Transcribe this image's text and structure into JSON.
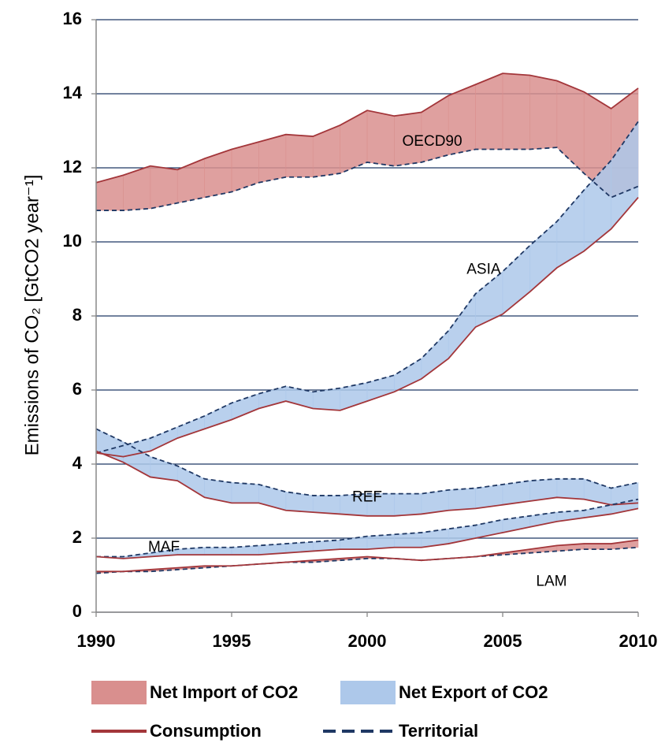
{
  "chart_data": {
    "type": "band",
    "y_label": "Emissions of CO₂ [GtCO2 year⁻¹]",
    "x": [
      1990,
      1991,
      1992,
      1993,
      1994,
      1995,
      1996,
      1997,
      1998,
      1999,
      2000,
      2001,
      2002,
      2003,
      2004,
      2005,
      2006,
      2007,
      2008,
      2009,
      2010
    ],
    "xlim": [
      1990,
      2010
    ],
    "xticks": [
      1990,
      1995,
      2000,
      2005,
      2010
    ],
    "ylim": [
      0,
      16
    ],
    "yticks": [
      0,
      2,
      4,
      6,
      8,
      10,
      12,
      14,
      16
    ],
    "grid": true,
    "grid_color": "#1f3864",
    "regions": [
      {
        "name": "OECD90",
        "consumption": [
          11.6,
          11.8,
          12.05,
          11.95,
          12.25,
          12.5,
          12.7,
          12.9,
          12.85,
          13.15,
          13.55,
          13.4,
          13.5,
          13.95,
          14.25,
          14.55,
          14.5,
          14.35,
          14.05,
          13.6,
          14.15
        ],
        "territorial": [
          10.85,
          10.85,
          10.9,
          11.05,
          11.2,
          11.35,
          11.6,
          11.75,
          11.75,
          11.85,
          12.15,
          12.05,
          12.15,
          12.35,
          12.5,
          12.5,
          12.5,
          12.55,
          11.85,
          11.2,
          11.5
        ]
      },
      {
        "name": "ASIA",
        "consumption": [
          4.3,
          4.2,
          4.35,
          4.7,
          4.95,
          5.2,
          5.5,
          5.7,
          5.5,
          5.45,
          5.7,
          5.95,
          6.3,
          6.85,
          7.7,
          8.05,
          8.65,
          9.3,
          9.75,
          10.35,
          11.2
        ],
        "territorial": [
          4.3,
          4.5,
          4.7,
          5.0,
          5.3,
          5.65,
          5.9,
          6.1,
          5.95,
          6.05,
          6.2,
          6.4,
          6.85,
          7.6,
          8.6,
          9.2,
          9.9,
          10.55,
          11.4,
          12.2,
          13.25
        ]
      },
      {
        "name": "REF",
        "consumption": [
          4.35,
          4.05,
          3.65,
          3.55,
          3.1,
          2.95,
          2.95,
          2.75,
          2.7,
          2.65,
          2.6,
          2.6,
          2.65,
          2.75,
          2.8,
          2.9,
          3.0,
          3.1,
          3.05,
          2.9,
          2.95
        ],
        "territorial": [
          4.95,
          4.6,
          4.2,
          3.95,
          3.6,
          3.5,
          3.45,
          3.25,
          3.15,
          3.15,
          3.2,
          3.2,
          3.2,
          3.3,
          3.35,
          3.45,
          3.55,
          3.6,
          3.6,
          3.35,
          3.5
        ]
      },
      {
        "name": "MAF",
        "consumption": [
          1.5,
          1.45,
          1.5,
          1.55,
          1.55,
          1.55,
          1.55,
          1.6,
          1.65,
          1.7,
          1.7,
          1.75,
          1.75,
          1.85,
          2.0,
          2.15,
          2.3,
          2.45,
          2.55,
          2.65,
          2.8
        ],
        "territorial": [
          1.5,
          1.5,
          1.6,
          1.7,
          1.75,
          1.75,
          1.8,
          1.85,
          1.9,
          1.95,
          2.05,
          2.1,
          2.15,
          2.25,
          2.35,
          2.5,
          2.6,
          2.7,
          2.75,
          2.9,
          3.05
        ]
      },
      {
        "name": "LAM",
        "consumption": [
          1.1,
          1.1,
          1.15,
          1.2,
          1.25,
          1.25,
          1.3,
          1.35,
          1.4,
          1.45,
          1.5,
          1.45,
          1.4,
          1.45,
          1.5,
          1.6,
          1.7,
          1.8,
          1.85,
          1.85,
          1.95
        ],
        "territorial": [
          1.05,
          1.1,
          1.1,
          1.15,
          1.2,
          1.25,
          1.3,
          1.35,
          1.35,
          1.4,
          1.45,
          1.45,
          1.4,
          1.45,
          1.5,
          1.55,
          1.6,
          1.65,
          1.7,
          1.7,
          1.75
        ]
      }
    ],
    "legend": {
      "import": {
        "label": "Net Import of CO2",
        "color": "#d98f8e"
      },
      "export": {
        "label": "Net Export of CO2",
        "color": "#adc8ea"
      },
      "consumption": {
        "label": "Consumption",
        "color": "#a3363a"
      },
      "territorial": {
        "label": "Territorial",
        "color": "#1f3864"
      }
    }
  }
}
